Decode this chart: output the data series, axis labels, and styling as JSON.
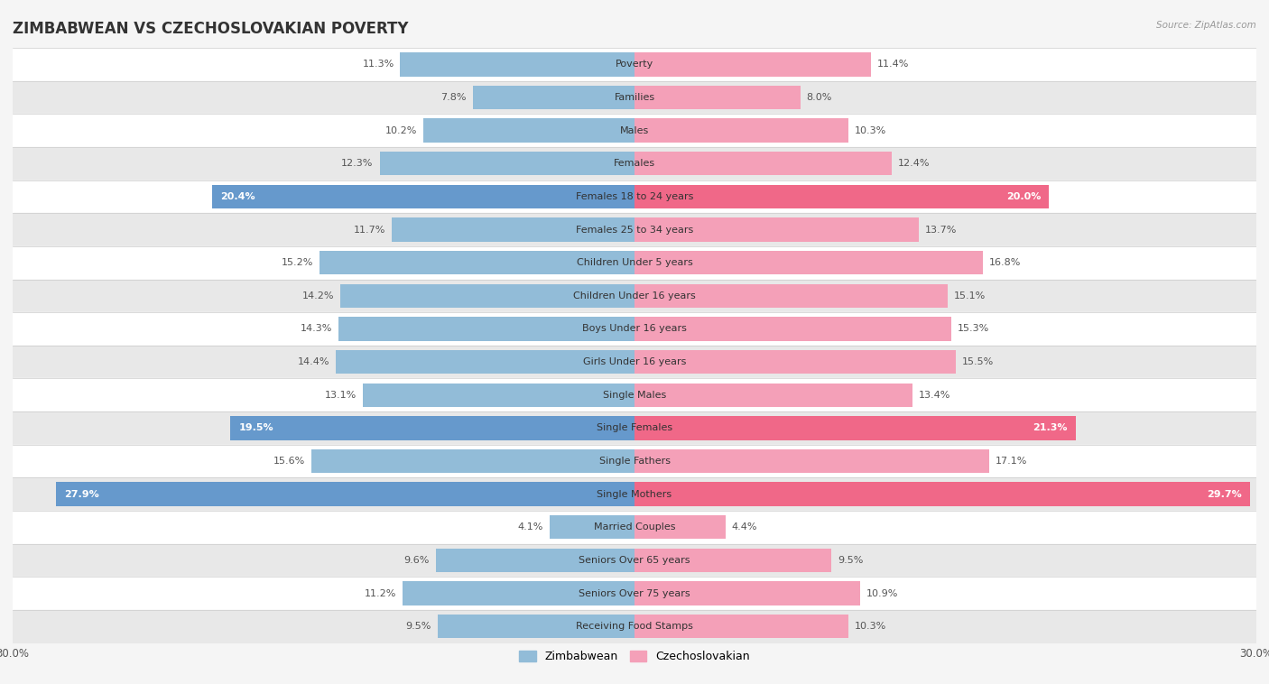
{
  "title": "ZIMBABWEAN VS CZECHOSLOVAKIAN POVERTY",
  "source": "Source: ZipAtlas.com",
  "categories": [
    "Poverty",
    "Families",
    "Males",
    "Females",
    "Females 18 to 24 years",
    "Females 25 to 34 years",
    "Children Under 5 years",
    "Children Under 16 years",
    "Boys Under 16 years",
    "Girls Under 16 years",
    "Single Males",
    "Single Females",
    "Single Fathers",
    "Single Mothers",
    "Married Couples",
    "Seniors Over 65 years",
    "Seniors Over 75 years",
    "Receiving Food Stamps"
  ],
  "zimbabwean": [
    11.3,
    7.8,
    10.2,
    12.3,
    20.4,
    11.7,
    15.2,
    14.2,
    14.3,
    14.4,
    13.1,
    19.5,
    15.6,
    27.9,
    4.1,
    9.6,
    11.2,
    9.5
  ],
  "czechoslovakian": [
    11.4,
    8.0,
    10.3,
    12.4,
    20.0,
    13.7,
    16.8,
    15.1,
    15.3,
    15.5,
    13.4,
    21.3,
    17.1,
    29.7,
    4.4,
    9.5,
    10.9,
    10.3
  ],
  "zimbabwean_color": "#92bcd8",
  "czechoslovakian_color": "#f4a0b8",
  "zimbabwean_highlight_color": "#6699cc",
  "czechoslovakian_highlight_color": "#f06888",
  "highlight_rows": [
    4,
    11,
    13
  ],
  "bar_height": 0.72,
  "xlim": 30,
  "background_color": "#f5f5f5",
  "row_bg_colors": [
    "#ffffff",
    "#e8e8e8"
  ],
  "legend_labels": [
    "Zimbabwean",
    "Czechoslovakian"
  ],
  "title_fontsize": 12,
  "label_fontsize": 8,
  "value_fontsize": 8,
  "axis_label_fontsize": 8.5
}
